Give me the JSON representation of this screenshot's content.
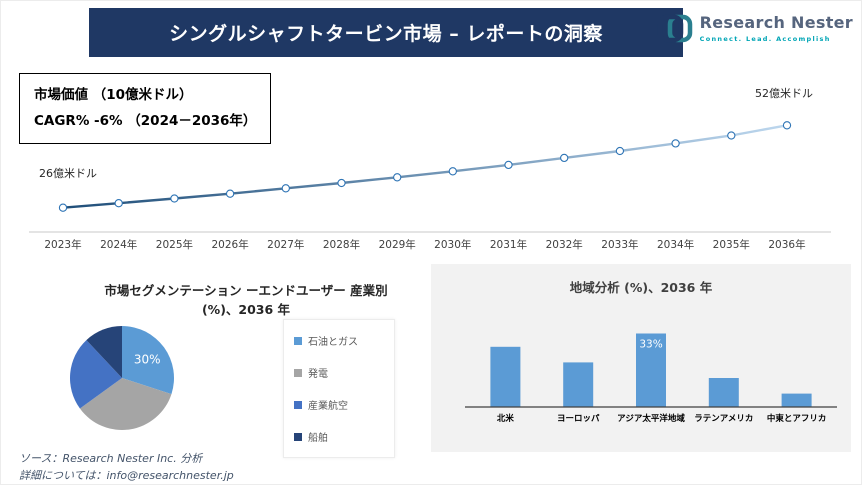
{
  "header": {
    "title": "シングルシャフトタービン市場 – レポートの洞察",
    "bg_color": "#1f3864"
  },
  "logo": {
    "name": "Research Nester",
    "tagline": "Connect. Lead. Accomplish",
    "accent_color": "#00a5b5",
    "navy_color": "#1f3864"
  },
  "info_box": {
    "line1": "市場価値 （10億米ドル）",
    "line2": "CAGR% -6% （2024－2036年）"
  },
  "footer": {
    "line1": "ソース：Research Nester Inc. 分析",
    "line2": "詳細については：info@researchnester.jp"
  },
  "chart_data": [
    {
      "type": "line",
      "title": "市場価値 （10億米ドル）",
      "x": [
        "2023年",
        "2024年",
        "2025年",
        "2026年",
        "2027年",
        "2028年",
        "2029年",
        "2030年",
        "2031年",
        "2032年",
        "2033年",
        "2034年",
        "2035年",
        "2036年"
      ],
      "values": [
        26,
        27.4,
        28.9,
        30.4,
        32.1,
        33.8,
        35.6,
        37.5,
        39.5,
        41.7,
        43.9,
        46.3,
        48.8,
        52
      ],
      "start_label": "26億米ドル",
      "end_label": "52億米ドル",
      "ylim": [
        24,
        54
      ],
      "grid": false,
      "line_gradient": [
        "#1f4e79",
        "#bdd7ee"
      ],
      "marker": "circle",
      "marker_stroke": "#2e74b5"
    },
    {
      "type": "pie",
      "title_line1": "市場セグメンテーション ーエンドユーザー 産業別",
      "title_line2": "(%)、2036 年",
      "labels": [
        "石油とガス",
        "発電",
        "産業航空",
        "船舶"
      ],
      "values": [
        30,
        35,
        23,
        12
      ],
      "colors": [
        "#5b9bd5",
        "#a5a5a5",
        "#4472c4",
        "#264478"
      ],
      "data_labels": [
        "30%",
        "",
        "",
        ""
      ],
      "legend_position": "right"
    },
    {
      "type": "bar",
      "title": "地域分析 (%)、2036 年",
      "categories": [
        "北米",
        "ヨーロッパ",
        "アジア太平洋地域",
        "ラテンアメリカ",
        "中東とアフリカ"
      ],
      "values": [
        27,
        20,
        33,
        13,
        6
      ],
      "ylim": [
        0,
        35
      ],
      "bar_color": "#5b9bd5",
      "data_labels": [
        "",
        "",
        "33%",
        "",
        ""
      ],
      "panel_bg": "#f2f2f2"
    }
  ]
}
